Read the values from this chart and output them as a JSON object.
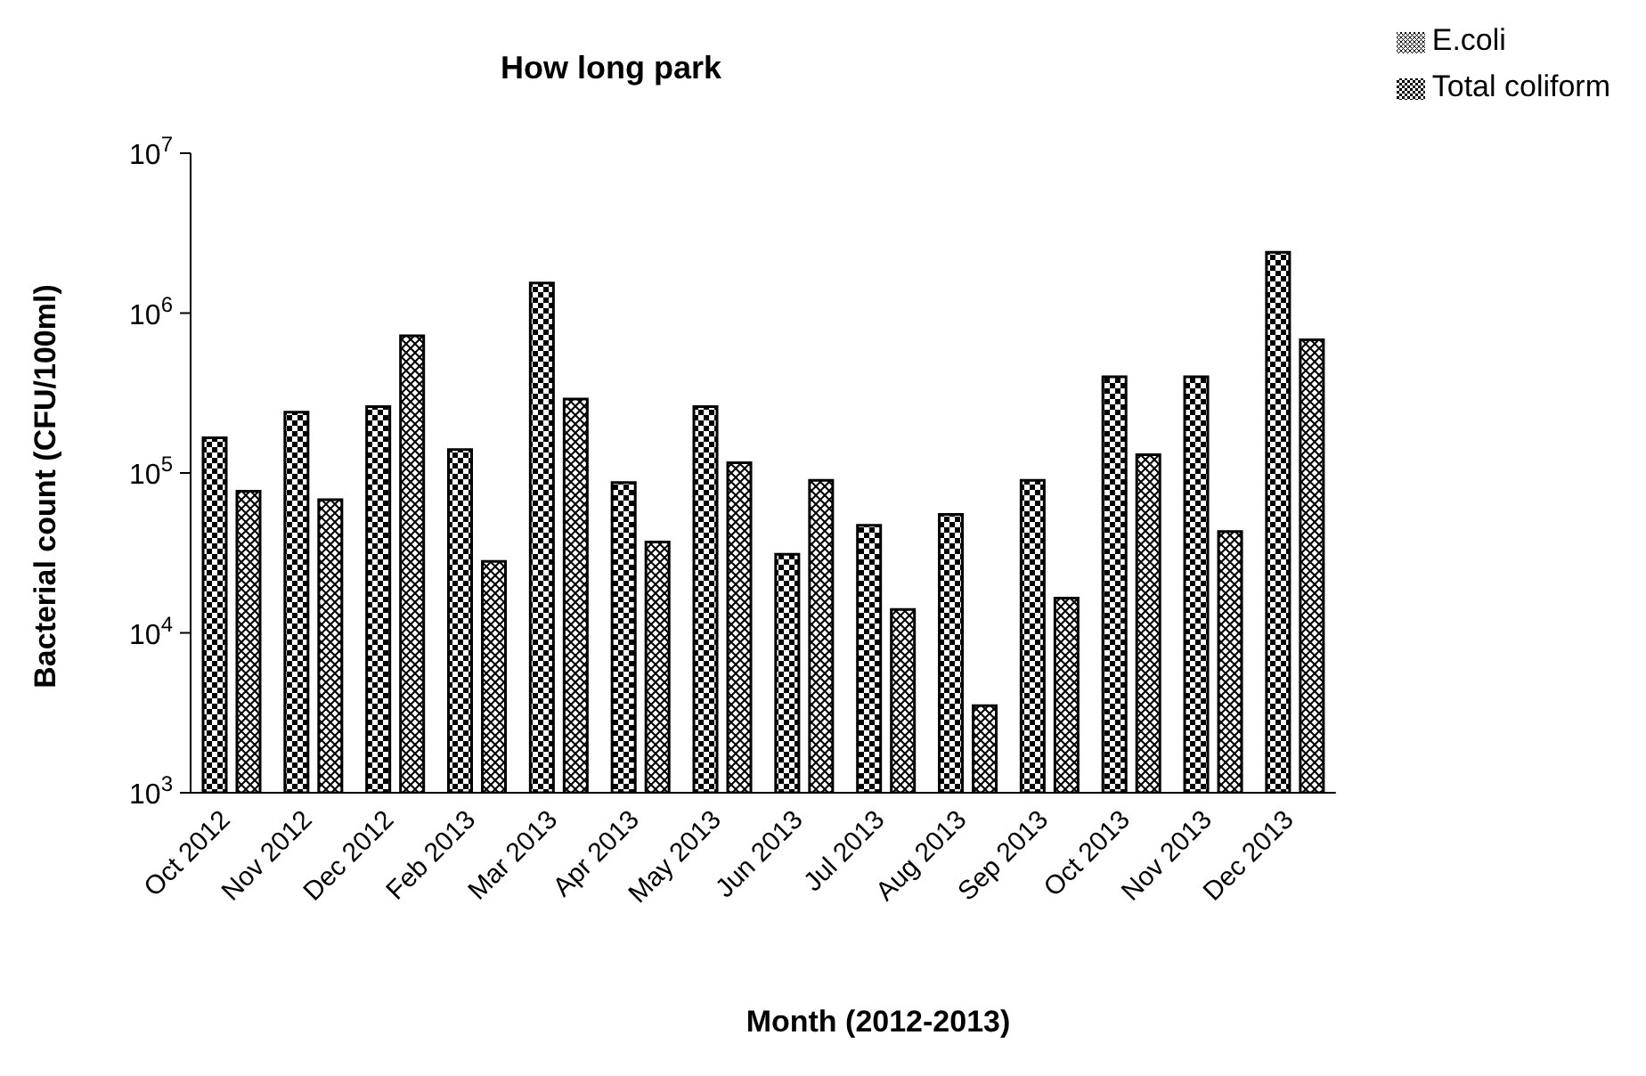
{
  "chart_data": {
    "type": "bar",
    "title": "How long park",
    "xlabel": "Month (2012-2013)",
    "ylabel": "Bacterial count (CFU/100ml)",
    "categories": [
      "Oct 2012",
      "Nov 2012",
      "Dec 2012",
      "Feb 2013",
      "Mar 2013",
      "Apr 2013",
      "May 2013",
      "Jun 2013",
      "Jul 2013",
      "Aug 2013",
      "Sep 2013",
      "Oct 2013",
      "Nov 2013",
      "Dec 2013"
    ],
    "series": [
      {
        "name": "Total coliform",
        "color": "#000000",
        "values": [
          166000,
          240000,
          260000,
          140000,
          1540000,
          87000,
          260000,
          31000,
          47000,
          55000,
          90000,
          400000,
          400000,
          2400000
        ]
      },
      {
        "name": "E.coli",
        "color": "#000000",
        "values": [
          77000,
          68000,
          720000,
          28000,
          290000,
          37000,
          116000,
          90000,
          14000,
          3500,
          16500,
          130000,
          43000,
          680000
        ]
      }
    ],
    "log": true,
    "ylim": [
      1000,
      10000000
    ],
    "yticks": [
      {
        "value": 1000,
        "label": "10$^{3}$"
      },
      {
        "value": 10000,
        "label": "10$^{4}$"
      },
      {
        "value": 100000,
        "label": "10$^{5}$"
      },
      {
        "value": 1000000,
        "label": "10$^{6}$"
      },
      {
        "value": 10000000,
        "label": "10$^{7}$"
      }
    ],
    "grid": false,
    "legend": "top right"
  }
}
